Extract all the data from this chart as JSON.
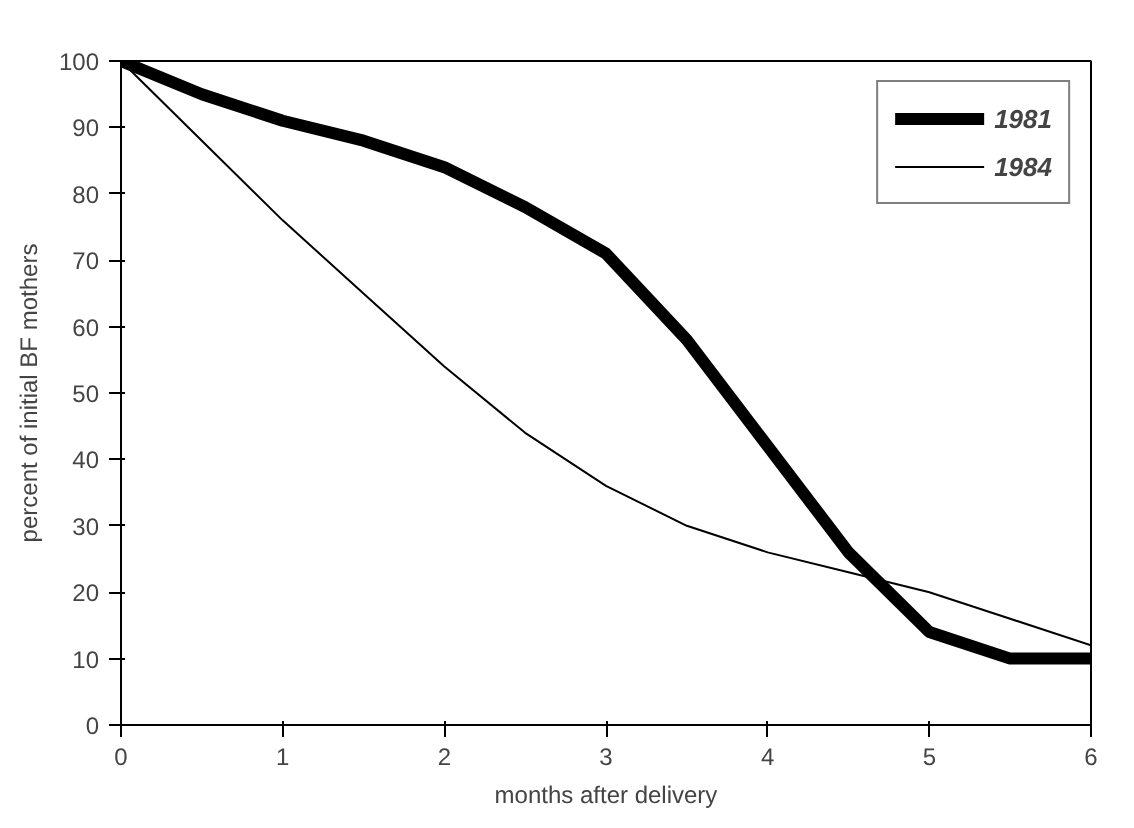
{
  "chart_data": {
    "type": "line",
    "xlabel": "months after delivery",
    "ylabel": "percent of initial BF mothers",
    "x": [
      0,
      0.5,
      1,
      1.5,
      2,
      2.5,
      3,
      3.5,
      4,
      4.5,
      5,
      5.5,
      6
    ],
    "series": [
      {
        "name": "1981",
        "color": "#000000",
        "values": [
          100,
          95,
          91,
          88,
          84,
          78,
          71,
          58,
          42,
          26,
          14,
          10,
          10
        ]
      },
      {
        "name": "1984",
        "color": "#000000",
        "values": [
          100,
          88,
          76,
          65,
          54,
          44,
          36,
          30,
          26,
          23,
          20,
          16,
          12
        ]
      }
    ],
    "xlim": [
      0,
      6
    ],
    "xticks": [
      0,
      1,
      2,
      3,
      4,
      5,
      6
    ],
    "ylim": [
      0,
      100
    ],
    "yticks": [
      0,
      10,
      20,
      30,
      40,
      50,
      60,
      70,
      80,
      90,
      100
    ],
    "grid": false,
    "legend": "top right",
    "marker": "none",
    "line_style": "solid"
  }
}
